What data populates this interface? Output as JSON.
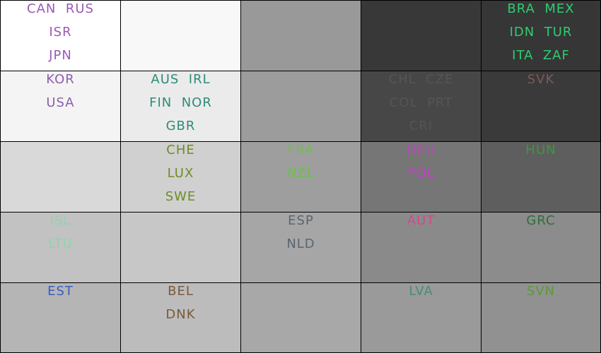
{
  "chart_data": {
    "type": "heatmap",
    "rows": 5,
    "cols": 5,
    "cells": [
      {
        "row": 0,
        "col": 0,
        "shade": "#ffffff",
        "text_color": "#9b59b6",
        "labels": [
          "CAN",
          "RUS",
          "ISR",
          "JPN"
        ],
        "lines": [
          [
            "CAN",
            "RUS"
          ],
          [
            "ISR"
          ],
          [
            "JPN"
          ]
        ]
      },
      {
        "row": 0,
        "col": 1,
        "shade": "#f8f8f8",
        "text_color": "#000000",
        "labels": [],
        "lines": []
      },
      {
        "row": 0,
        "col": 2,
        "shade": "#999999",
        "text_color": "#000000",
        "labels": [],
        "lines": []
      },
      {
        "row": 0,
        "col": 3,
        "shade": "#383838",
        "text_color": "#000000",
        "labels": [],
        "lines": []
      },
      {
        "row": 0,
        "col": 4,
        "shade": "#363636",
        "text_color": "#2ecc71",
        "labels": [
          "BRA",
          "MEX",
          "IDN",
          "TUR",
          "ITA",
          "ZAF"
        ],
        "lines": [
          [
            "BRA",
            "MEX"
          ],
          [
            "IDN",
            "TUR"
          ],
          [
            "ITA",
            "ZAF"
          ]
        ]
      },
      {
        "row": 1,
        "col": 0,
        "shade": "#f4f4f4",
        "text_color": "#8e5fb0",
        "labels": [
          "KOR",
          "USA"
        ],
        "lines": [
          [
            "KOR"
          ],
          [
            "USA"
          ]
        ]
      },
      {
        "row": 1,
        "col": 1,
        "shade": "#ebebeb",
        "text_color": "#2e8b7a",
        "labels": [
          "AUS",
          "IRL",
          "FIN",
          "NOR",
          "GBR"
        ],
        "lines": [
          [
            "AUS",
            "IRL"
          ],
          [
            "FIN",
            "NOR"
          ],
          [
            "GBR"
          ]
        ]
      },
      {
        "row": 1,
        "col": 2,
        "shade": "#9c9c9c",
        "text_color": "#000000",
        "labels": [],
        "lines": []
      },
      {
        "row": 1,
        "col": 3,
        "shade": "#474747",
        "text_color": "#555555",
        "labels": [
          "CHL",
          "CZE",
          "COL",
          "PRT",
          "CRI"
        ],
        "lines": [
          [
            "CHL",
            "CZE"
          ],
          [
            "COL",
            "PRT"
          ],
          [
            "CRI"
          ]
        ]
      },
      {
        "row": 1,
        "col": 4,
        "shade": "#3a3a3a",
        "text_color": "#7a5a5a",
        "labels": [
          "SVK"
        ],
        "lines": [
          [
            "SVK"
          ]
        ]
      },
      {
        "row": 2,
        "col": 0,
        "shade": "#d9d9d9",
        "text_color": "#000000",
        "labels": [],
        "lines": []
      },
      {
        "row": 2,
        "col": 1,
        "shade": "#d0d0d0",
        "text_color": "#6b8e23",
        "labels": [
          "CHE",
          "LUX",
          "SWE"
        ],
        "lines": [
          [
            "CHE"
          ],
          [
            "LUX"
          ],
          [
            "SWE"
          ]
        ]
      },
      {
        "row": 2,
        "col": 2,
        "shade": "#9e9e9e",
        "text_color": "#6cc04a",
        "labels": [
          "FRA",
          "NZL"
        ],
        "lines": [
          [
            "FRA"
          ],
          [
            "NZL"
          ]
        ]
      },
      {
        "row": 2,
        "col": 3,
        "shade": "#767676",
        "text_color": "#c040c0",
        "labels": [
          "DEU",
          "POL"
        ],
        "lines": [
          [
            "DEU"
          ],
          [
            "POL"
          ]
        ]
      },
      {
        "row": 2,
        "col": 4,
        "shade": "#5e5e5e",
        "text_color": "#3a9a3a",
        "labels": [
          "HUN"
        ],
        "lines": [
          [
            "HUN"
          ]
        ]
      },
      {
        "row": 3,
        "col": 0,
        "shade": "#c2c2c2",
        "text_color": "#8fd3b0",
        "labels": [
          "ISL",
          "LTU"
        ],
        "lines": [
          [
            "ISL"
          ],
          [
            "LTU"
          ]
        ]
      },
      {
        "row": 3,
        "col": 1,
        "shade": "#c7c7c7",
        "text_color": "#000000",
        "labels": [],
        "lines": []
      },
      {
        "row": 3,
        "col": 2,
        "shade": "#a6a6a6",
        "text_color": "#5a6570",
        "labels": [
          "ESP",
          "NLD"
        ],
        "lines": [
          [
            "ESP"
          ],
          [
            "NLD"
          ]
        ]
      },
      {
        "row": 3,
        "col": 3,
        "shade": "#8a8a8a",
        "text_color": "#d04a8a",
        "labels": [
          "AUT"
        ],
        "lines": [
          [
            "AUT"
          ]
        ]
      },
      {
        "row": 3,
        "col": 4,
        "shade": "#8c8c8c",
        "text_color": "#2e6e3a",
        "labels": [
          "GRC"
        ],
        "lines": [
          [
            "GRC"
          ]
        ]
      },
      {
        "row": 4,
        "col": 0,
        "shade": "#b5b5b5",
        "text_color": "#3a5fc0",
        "labels": [
          "EST"
        ],
        "lines": [
          [
            "EST"
          ]
        ]
      },
      {
        "row": 4,
        "col": 1,
        "shade": "#bcbcbc",
        "text_color": "#7a5a3a",
        "labels": [
          "BEL",
          "DNK"
        ],
        "lines": [
          [
            "BEL"
          ],
          [
            "DNK"
          ]
        ]
      },
      {
        "row": 4,
        "col": 2,
        "shade": "#a8a8a8",
        "text_color": "#000000",
        "labels": [],
        "lines": []
      },
      {
        "row": 4,
        "col": 3,
        "shade": "#9a9a9a",
        "text_color": "#4a8a7a",
        "labels": [
          "LVA"
        ],
        "lines": [
          [
            "LVA"
          ]
        ]
      },
      {
        "row": 4,
        "col": 4,
        "shade": "#919191",
        "text_color": "#5a9a3a",
        "labels": [
          "SVN"
        ],
        "lines": [
          [
            "SVN"
          ]
        ]
      }
    ],
    "title": "",
    "xlabel": "",
    "ylabel": "",
    "legend": "none",
    "grid": true
  }
}
